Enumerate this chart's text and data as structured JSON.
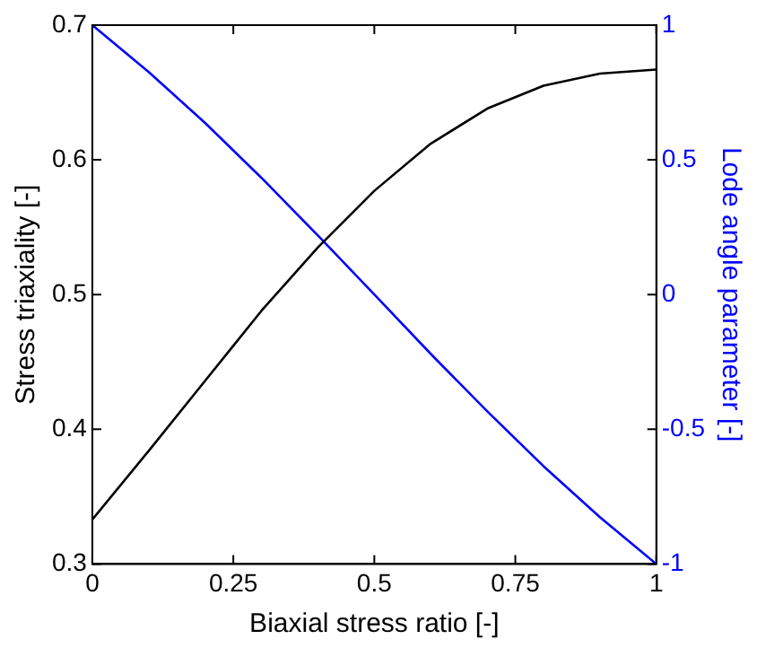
{
  "chart_data": {
    "type": "line",
    "xlabel": "Biaxial stress ratio [-]",
    "ylabel": "Stress triaxiality [-]",
    "y2label": "Lode angle parameter [-]",
    "x": [
      0,
      0.1,
      0.2,
      0.3,
      0.4,
      0.5,
      0.6,
      0.7,
      0.8,
      0.9,
      1
    ],
    "xlim": [
      0,
      1
    ],
    "xticks": [
      0,
      0.25,
      0.5,
      0.75,
      1
    ],
    "ylim": [
      0.3,
      0.7
    ],
    "yticks": [
      0.3,
      0.4,
      0.5,
      0.6,
      0.7
    ],
    "y2lim": [
      -1,
      1
    ],
    "y2ticks": [
      -1,
      -0.5,
      0,
      0.5,
      1
    ],
    "series": [
      {
        "color": "#000000",
        "values": [
          0.333,
          0.384,
          0.436,
          0.488,
          0.535,
          0.577,
          0.612,
          0.638,
          0.655,
          0.664,
          0.667
        ]
      },
      {
        "color": "#0000ff",
        "axis": "y2",
        "values": [
          1,
          0.826,
          0.637,
          0.433,
          0.219,
          0,
          -0.22,
          -0.433,
          -0.637,
          -0.826,
          -1
        ]
      }
    ],
    "grid": false,
    "legend": false,
    "marker": "none",
    "line_style": "solid"
  }
}
